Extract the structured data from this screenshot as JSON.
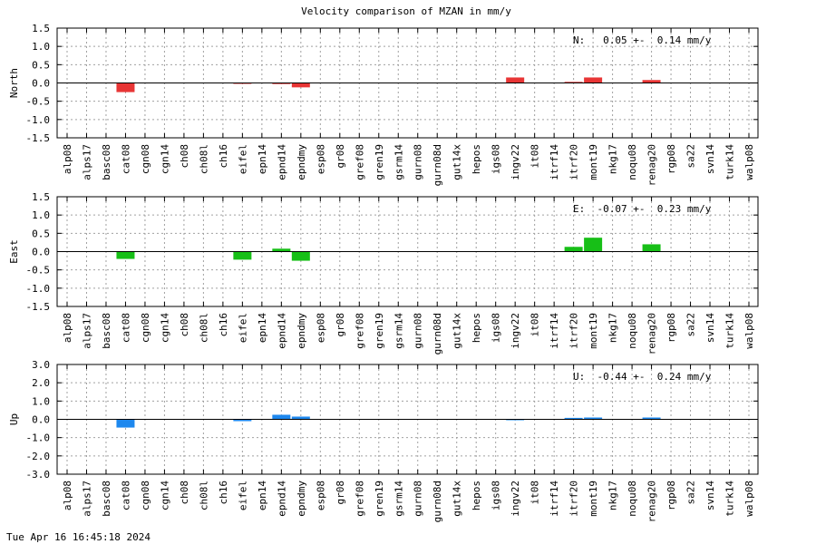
{
  "title": "Velocity comparison of MZAN in mm/y",
  "footer": "Tue Apr 16 16:45:18 2024",
  "colors": {
    "north": "#e83535",
    "east": "#17bf17",
    "up": "#1e88ee",
    "grid": "#a0a0a0"
  },
  "chart_data": {
    "type": "bar",
    "categories": [
      "alp08",
      "alps17",
      "basc08",
      "cat08",
      "cgn08",
      "cgn14",
      "ch08",
      "ch08l",
      "ch16",
      "eifel",
      "epn14",
      "epnd14",
      "epndmy",
      "esp08",
      "gr08",
      "gref08",
      "gren19",
      "gsrm14",
      "gurn08",
      "gurn08d",
      "gut14x",
      "hepos",
      "igs08",
      "ingv22",
      "it08",
      "itrf14",
      "itrf20",
      "mont19",
      "nkg17",
      "noqu08",
      "renag20",
      "rgp08",
      "sa22",
      "svn14",
      "turk14",
      "walp08"
    ],
    "panels": [
      {
        "ylabel": "North",
        "ylim": [
          -1.5,
          1.5
        ],
        "yticks": [
          1.5,
          1.0,
          0.5,
          0.0,
          -0.5,
          -1.0,
          -1.5
        ],
        "ytick_labels": [
          "1.5",
          "1.0",
          "0.5",
          "0.0",
          "-0.5",
          "-1.0",
          "-1.5"
        ],
        "annotation": "N:   0.05 +-  0.14 mm/y",
        "color": "#e83535",
        "values": [
          0,
          0,
          0,
          -0.25,
          0,
          0,
          0,
          0,
          0,
          -0.02,
          0,
          -0.03,
          -0.12,
          0,
          0,
          0,
          0,
          0,
          0,
          0,
          0,
          0,
          0,
          0.15,
          0,
          0,
          0.03,
          0.15,
          0,
          0,
          0.08,
          0,
          0,
          0,
          0,
          0
        ]
      },
      {
        "ylabel": "East",
        "ylim": [
          -1.5,
          1.5
        ],
        "yticks": [
          1.5,
          1.0,
          0.5,
          0.0,
          -0.5,
          -1.0,
          -1.5
        ],
        "ytick_labels": [
          "1.5",
          "1.0",
          "0.5",
          "0.0",
          "-0.5",
          "-1.0",
          "-1.5"
        ],
        "annotation": "E:  -0.07 +-  0.23 mm/y",
        "color": "#17bf17",
        "values": [
          0,
          0,
          0,
          -0.2,
          0,
          0,
          0,
          0,
          0,
          -0.22,
          0,
          0.08,
          -0.25,
          0,
          0,
          0,
          0,
          0,
          0,
          0,
          0,
          0,
          0,
          0,
          0,
          0,
          0.13,
          0.38,
          0,
          0,
          0.2,
          0,
          0,
          0,
          0,
          0
        ]
      },
      {
        "ylabel": "Up",
        "ylim": [
          -3.0,
          3.0
        ],
        "yticks": [
          3.0,
          2.0,
          1.0,
          0.0,
          -1.0,
          -2.0,
          -3.0
        ],
        "ytick_labels": [
          "3.0",
          "2.0",
          "1.0",
          "0.0",
          "-1.0",
          "-2.0",
          "-3.0"
        ],
        "annotation": "U:  -0.44 +-  0.24 mm/y",
        "color": "#1e88ee",
        "values": [
          0,
          0,
          0,
          -0.45,
          0,
          0,
          0,
          0,
          0,
          -0.1,
          0,
          0.25,
          0.15,
          0,
          0,
          0,
          0,
          0,
          0,
          0,
          0,
          0,
          0,
          -0.05,
          0,
          0,
          0.08,
          0.1,
          0,
          0,
          0.1,
          0,
          0,
          0,
          0,
          0
        ]
      }
    ],
    "grid": true,
    "gridstyle": "dotted"
  }
}
